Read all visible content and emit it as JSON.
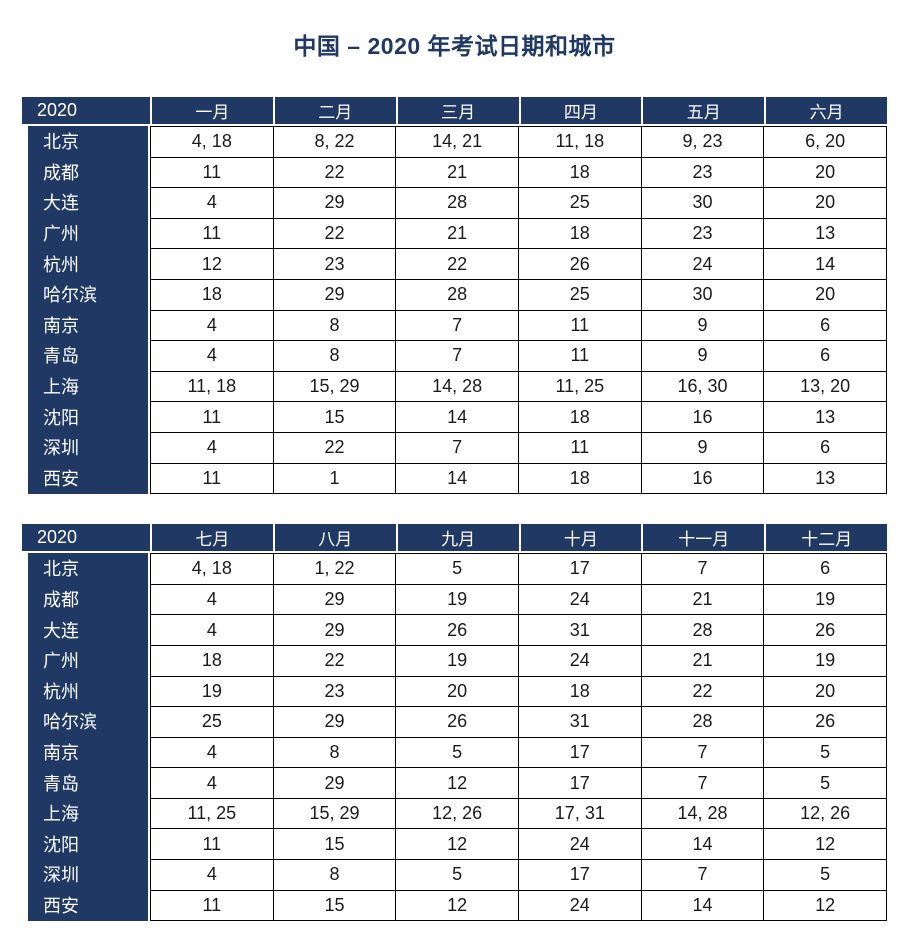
{
  "page": {
    "title": "中国 – 2020 年考试日期和城市"
  },
  "colors": {
    "header_navy": "#1F3864",
    "cell_border": "#000000",
    "title_text": "#1F3864"
  },
  "tables": [
    {
      "year_label": "2020",
      "months": [
        "一月",
        "二月",
        "三月",
        "四月",
        "五月",
        "六月"
      ],
      "rows": [
        {
          "city": "北京",
          "dates": [
            "4, 18",
            "8, 22",
            "14, 21",
            "11, 18",
            "9, 23",
            "6, 20"
          ]
        },
        {
          "city": "成都",
          "dates": [
            "11",
            "22",
            "21",
            "18",
            "23",
            "20"
          ]
        },
        {
          "city": "大连",
          "dates": [
            "4",
            "29",
            "28",
            "25",
            "30",
            "20"
          ]
        },
        {
          "city": "广州",
          "dates": [
            "11",
            "22",
            "21",
            "18",
            "23",
            "13"
          ]
        },
        {
          "city": "杭州",
          "dates": [
            "12",
            "23",
            "22",
            "26",
            "24",
            "14"
          ]
        },
        {
          "city": "哈尔滨",
          "dates": [
            "18",
            "29",
            "28",
            "25",
            "30",
            "20"
          ]
        },
        {
          "city": "南京",
          "dates": [
            "4",
            "8",
            "7",
            "11",
            "9",
            "6"
          ]
        },
        {
          "city": "青岛",
          "dates": [
            "4",
            "8",
            "7",
            "11",
            "9",
            "6"
          ]
        },
        {
          "city": "上海",
          "dates": [
            "11, 18",
            "15, 29",
            "14, 28",
            "11, 25",
            "16, 30",
            "13, 20"
          ]
        },
        {
          "city": "沈阳",
          "dates": [
            "11",
            "15",
            "14",
            "18",
            "16",
            "13"
          ]
        },
        {
          "city": "深圳",
          "dates": [
            "4",
            "22",
            "7",
            "11",
            "9",
            "6"
          ]
        },
        {
          "city": "西安",
          "dates": [
            "11",
            "1",
            "14",
            "18",
            "16",
            "13"
          ]
        }
      ]
    },
    {
      "year_label": "2020",
      "months": [
        "七月",
        "八月",
        "九月",
        "十月",
        "十一月",
        "十二月"
      ],
      "rows": [
        {
          "city": "北京",
          "dates": [
            "4, 18",
            "1, 22",
            "5",
            "17",
            "7",
            "6"
          ]
        },
        {
          "city": "成都",
          "dates": [
            "4",
            "29",
            "19",
            "24",
            "21",
            "19"
          ]
        },
        {
          "city": "大连",
          "dates": [
            "4",
            "29",
            "26",
            "31",
            "28",
            "26"
          ]
        },
        {
          "city": "广州",
          "dates": [
            "18",
            "22",
            "19",
            "24",
            "21",
            "19"
          ]
        },
        {
          "city": "杭州",
          "dates": [
            "19",
            "23",
            "20",
            "18",
            "22",
            "20"
          ]
        },
        {
          "city": "哈尔滨",
          "dates": [
            "25",
            "29",
            "26",
            "31",
            "28",
            "26"
          ]
        },
        {
          "city": "南京",
          "dates": [
            "4",
            "8",
            "5",
            "17",
            "7",
            "5"
          ]
        },
        {
          "city": "青岛",
          "dates": [
            "4",
            "29",
            "12",
            "17",
            "7",
            "5"
          ]
        },
        {
          "city": "上海",
          "dates": [
            "11, 25",
            "15, 29",
            "12, 26",
            "17, 31",
            "14, 28",
            "12, 26"
          ]
        },
        {
          "city": "沈阳",
          "dates": [
            "11",
            "15",
            "12",
            "24",
            "14",
            "12"
          ]
        },
        {
          "city": "深圳",
          "dates": [
            "4",
            "8",
            "5",
            "17",
            "7",
            "5"
          ]
        },
        {
          "city": "西安",
          "dates": [
            "11",
            "15",
            "12",
            "24",
            "14",
            "12"
          ]
        }
      ]
    }
  ]
}
